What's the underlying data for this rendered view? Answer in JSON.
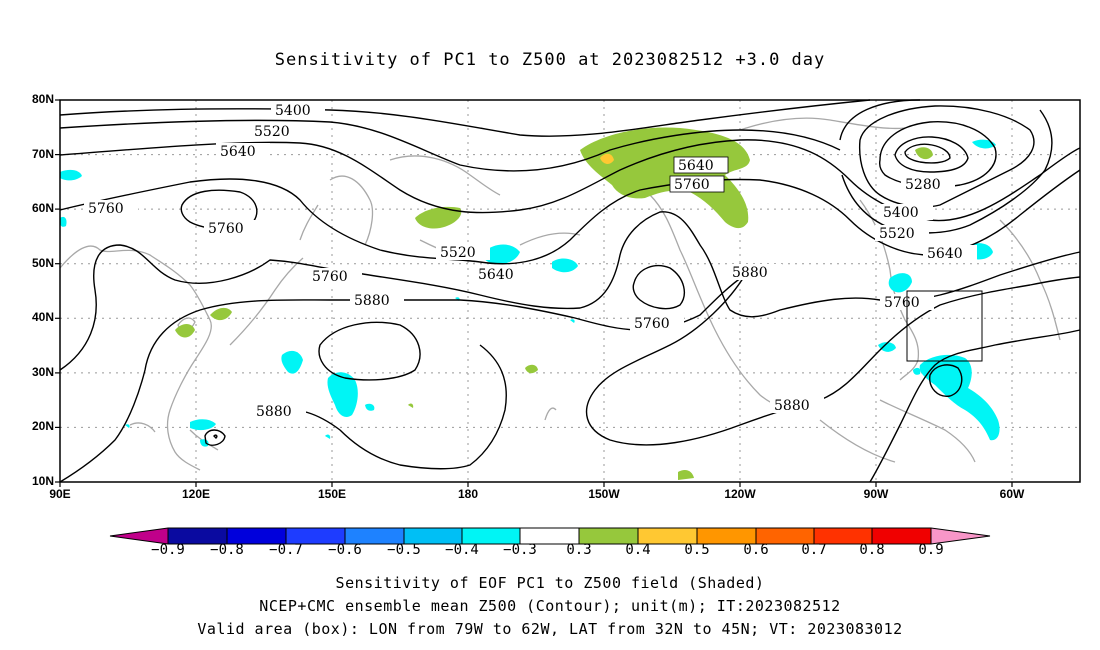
{
  "title": "Sensitivity of PC1 to Z500 at 2023082512 +3.0 day",
  "map": {
    "lat_labels": [
      "80N",
      "70N",
      "60N",
      "50N",
      "40N",
      "30N",
      "20N",
      "10N"
    ],
    "lon_labels": [
      "90E",
      "120E",
      "150E",
      "180",
      "150W",
      "120W",
      "90W",
      "60W"
    ],
    "contour_labels": {
      "c5400a": "5400",
      "c5520a": "5520",
      "c5640a": "5640",
      "c5760a": "5760",
      "c5760b": "5760",
      "c5520b": "5520",
      "c5640b": "5640",
      "c5760c": "5760",
      "c5880a": "5880",
      "c5880b": "5880",
      "c5760d": "5760",
      "c5880c": "5880",
      "c5880d": "5880",
      "c5640c": "5640",
      "c5760e": "5760",
      "c5280": "5280",
      "c5400b": "5400",
      "c5520c": "5520",
      "c5640d": "5640",
      "c5760f": "5760"
    },
    "valid_box": {
      "lon_from": "79W",
      "lon_to": "62W",
      "lat_from": "32N",
      "lat_to": "45N"
    }
  },
  "colorbar": {
    "labels": [
      "−0.9",
      "−0.8",
      "−0.7",
      "−0.6",
      "−0.5",
      "−0.4",
      "−0.3",
      "0.3",
      "0.4",
      "0.5",
      "0.6",
      "0.7",
      "0.8",
      "0.9"
    ],
    "colors": [
      "#c0008a",
      "#0a0aa0",
      "#0000dc",
      "#1e3cff",
      "#1e82ff",
      "#00bff5",
      "#00f5f5",
      "#ffffff",
      "#96c83c",
      "#ffc832",
      "#ff9600",
      "#ff6400",
      "#ff3200",
      "#f00000",
      "#f896c8"
    ]
  },
  "footer": {
    "line1": "Sensitivity of EOF PC1 to Z500 field (Shaded)",
    "line2": "NCEP+CMC ensemble mean Z500 (Contour); unit(m); IT:2023082512",
    "line3": "Valid area (box): LON from 79W to 62W, LAT from 32N to 45N; VT: 2023083012"
  }
}
